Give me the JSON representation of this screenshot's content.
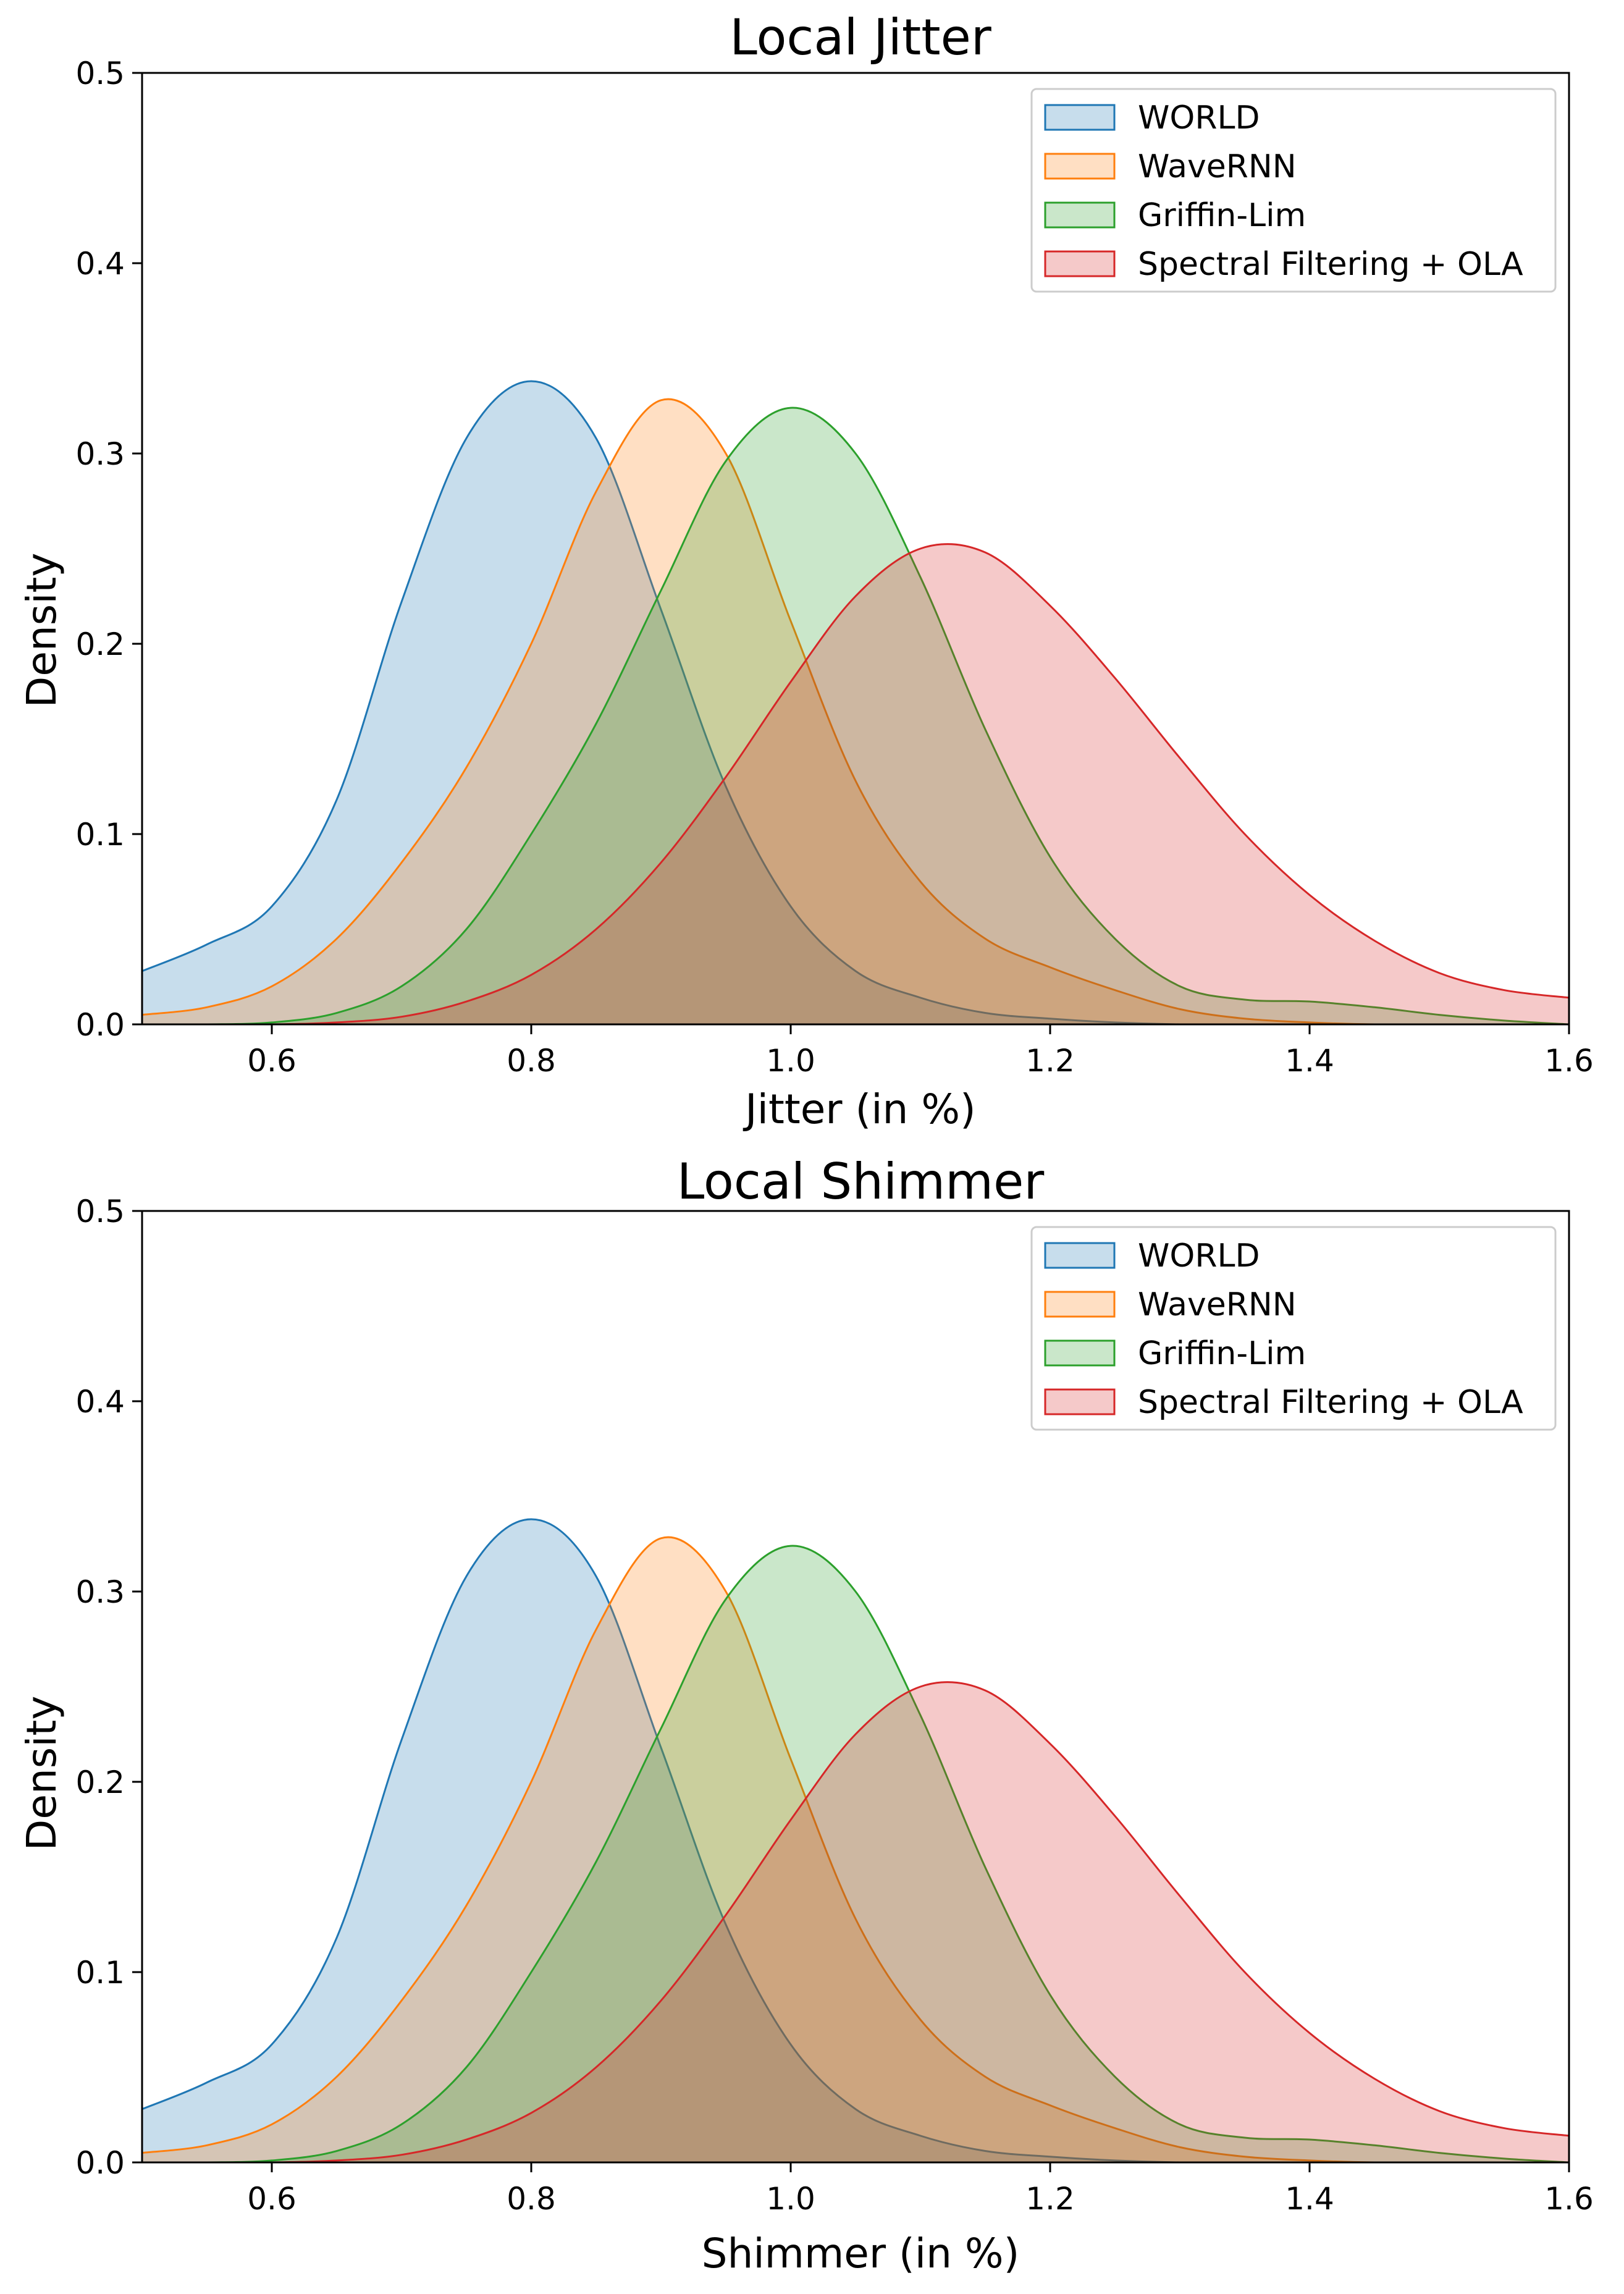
{
  "figure": {
    "panels": [
      {
        "title": "Local Jitter",
        "xlabel": "Jitter (in %)",
        "ylabel": "Density"
      },
      {
        "title": "Local Shimmer",
        "xlabel": "Shimmer (in %)",
        "ylabel": "Density"
      }
    ]
  },
  "chart_data": [
    {
      "type": "area",
      "title": "Local Jitter",
      "xlabel": "Jitter (in %)",
      "ylabel": "Density",
      "xlim": [
        0.5,
        1.6
      ],
      "ylim": [
        0.0,
        0.5
      ],
      "xticks": [
        0.6,
        0.8,
        1.0,
        1.2,
        1.4,
        1.6
      ],
      "xtick_labels": [
        "0.6",
        "0.8",
        "1.0",
        "1.2",
        "1.4",
        "1.6"
      ],
      "yticks": [
        0.0,
        0.1,
        0.2,
        0.3,
        0.4,
        0.5
      ],
      "ytick_labels": [
        "0.0",
        "0.1",
        "0.2",
        "0.3",
        "0.4",
        "0.5"
      ],
      "legend_position": "top-right",
      "x": [
        0.5,
        0.55,
        0.6,
        0.65,
        0.7,
        0.75,
        0.8,
        0.85,
        0.9,
        0.95,
        1.0,
        1.05,
        1.1,
        1.15,
        1.2,
        1.25,
        1.3,
        1.35,
        1.4,
        1.45,
        1.5,
        1.55,
        1.6
      ],
      "series": [
        {
          "name": "WORLD",
          "line_color": "#1f77b4",
          "fill_color": "#1f77b4",
          "values": [
            0.028,
            0.042,
            0.062,
            0.118,
            0.222,
            0.308,
            0.338,
            0.308,
            0.218,
            0.125,
            0.062,
            0.028,
            0.014,
            0.006,
            0.003,
            0.001,
            0.0,
            0.0,
            0.0,
            0.0,
            0.0,
            0.0,
            0.0
          ]
        },
        {
          "name": "WaveRNN",
          "line_color": "#ff7f0e",
          "fill_color": "#ff7f0e",
          "values": [
            0.005,
            0.009,
            0.02,
            0.045,
            0.085,
            0.135,
            0.2,
            0.28,
            0.328,
            0.3,
            0.212,
            0.128,
            0.075,
            0.045,
            0.03,
            0.018,
            0.008,
            0.003,
            0.001,
            0.0,
            0.0,
            0.0,
            0.0
          ]
        },
        {
          "name": "Griffin-Lim",
          "line_color": "#2ca02c",
          "fill_color": "#2ca02c",
          "values": [
            0.0,
            0.0,
            0.001,
            0.006,
            0.02,
            0.05,
            0.1,
            0.158,
            0.228,
            0.296,
            0.324,
            0.3,
            0.235,
            0.155,
            0.088,
            0.045,
            0.02,
            0.013,
            0.012,
            0.009,
            0.005,
            0.002,
            0.0
          ]
        },
        {
          "name": "Spectral Filtering + OLA",
          "line_color": "#d62728",
          "fill_color": "#d62728",
          "values": [
            0.0,
            0.0,
            0.0,
            0.001,
            0.004,
            0.012,
            0.026,
            0.05,
            0.085,
            0.13,
            0.18,
            0.225,
            0.25,
            0.248,
            0.22,
            0.182,
            0.14,
            0.1,
            0.068,
            0.044,
            0.027,
            0.018,
            0.014
          ]
        }
      ]
    },
    {
      "type": "area",
      "title": "Local Shimmer",
      "xlabel": "Shimmer (in %)",
      "ylabel": "Density",
      "xlim": [
        0.5,
        1.6
      ],
      "ylim": [
        0.0,
        0.5
      ],
      "xticks": [
        0.6,
        0.8,
        1.0,
        1.2,
        1.4,
        1.6
      ],
      "xtick_labels": [
        "0.6",
        "0.8",
        "1.0",
        "1.2",
        "1.4",
        "1.6"
      ],
      "yticks": [
        0.0,
        0.1,
        0.2,
        0.3,
        0.4,
        0.5
      ],
      "ytick_labels": [
        "0.0",
        "0.1",
        "0.2",
        "0.3",
        "0.4",
        "0.5"
      ],
      "legend_position": "top-right",
      "x": [
        0.5,
        0.55,
        0.6,
        0.65,
        0.7,
        0.75,
        0.8,
        0.85,
        0.9,
        0.95,
        1.0,
        1.05,
        1.1,
        1.15,
        1.2,
        1.25,
        1.3,
        1.35,
        1.4,
        1.45,
        1.5,
        1.55,
        1.6
      ],
      "series": [
        {
          "name": "WORLD",
          "line_color": "#1f77b4",
          "fill_color": "#1f77b4",
          "values": [
            0.028,
            0.042,
            0.062,
            0.118,
            0.222,
            0.308,
            0.338,
            0.308,
            0.218,
            0.125,
            0.062,
            0.028,
            0.014,
            0.006,
            0.003,
            0.001,
            0.0,
            0.0,
            0.0,
            0.0,
            0.0,
            0.0,
            0.0
          ]
        },
        {
          "name": "WaveRNN",
          "line_color": "#ff7f0e",
          "fill_color": "#ff7f0e",
          "values": [
            0.005,
            0.009,
            0.02,
            0.045,
            0.085,
            0.135,
            0.2,
            0.28,
            0.328,
            0.3,
            0.212,
            0.128,
            0.075,
            0.045,
            0.03,
            0.018,
            0.008,
            0.003,
            0.001,
            0.0,
            0.0,
            0.0,
            0.0
          ]
        },
        {
          "name": "Griffin-Lim",
          "line_color": "#2ca02c",
          "fill_color": "#2ca02c",
          "values": [
            0.0,
            0.0,
            0.001,
            0.006,
            0.02,
            0.05,
            0.1,
            0.158,
            0.228,
            0.296,
            0.324,
            0.3,
            0.235,
            0.155,
            0.088,
            0.045,
            0.02,
            0.013,
            0.012,
            0.009,
            0.005,
            0.002,
            0.0
          ]
        },
        {
          "name": "Spectral Filtering + OLA",
          "line_color": "#d62728",
          "fill_color": "#d62728",
          "values": [
            0.0,
            0.0,
            0.0,
            0.001,
            0.004,
            0.012,
            0.026,
            0.05,
            0.085,
            0.13,
            0.18,
            0.225,
            0.25,
            0.248,
            0.22,
            0.182,
            0.14,
            0.1,
            0.068,
            0.044,
            0.027,
            0.018,
            0.014
          ]
        }
      ]
    }
  ]
}
